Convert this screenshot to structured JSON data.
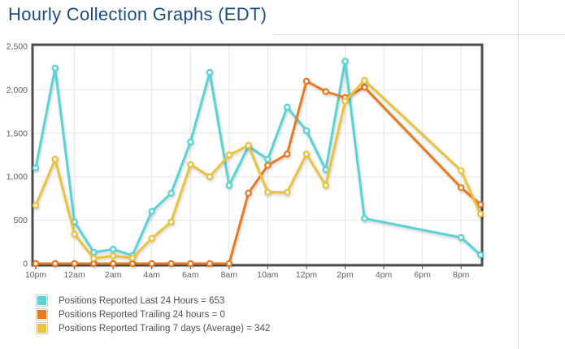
{
  "title": "Hourly Collection Graphs (EDT)",
  "colors": {
    "title": "#1b4c80",
    "axis_text": "#606060",
    "grid": "#e6e6e6",
    "plot_border": "#4c4c4c",
    "divider": "#dddddd",
    "legend_text": "#4f4f4f",
    "legend_swatch_border": "#cccccc",
    "plot_background": "#ffffff"
  },
  "chart_data": {
    "type": "line",
    "title": "Hourly Collection Graphs (EDT)",
    "xlabel": "",
    "ylabel": "",
    "grid": true,
    "legend_position": "bottom-left",
    "ylim": [
      0,
      2500
    ],
    "yticks": [
      {
        "v": 0,
        "label": "0"
      },
      {
        "v": 500,
        "label": "500"
      },
      {
        "v": 1000,
        "label": "1,000"
      },
      {
        "v": 1500,
        "label": "1,500"
      },
      {
        "v": 2000,
        "label": "2,000"
      },
      {
        "v": 2500,
        "label": "2,500"
      }
    ],
    "hours": [
      "10pm",
      "11pm",
      "12am",
      "1am",
      "2am",
      "3am",
      "4am",
      "5am",
      "6am",
      "7am",
      "8am",
      "9am",
      "10am",
      "11am",
      "12pm",
      "1pm",
      "2pm",
      "3pm",
      "4pm",
      "5pm",
      "6pm",
      "7pm",
      "8pm",
      "9pm"
    ],
    "x_tick_labels": [
      "10pm",
      "12am",
      "2am",
      "4am",
      "6am",
      "8am",
      "10am",
      "12pm",
      "2pm",
      "4pm",
      "6pm",
      "8pm"
    ],
    "series": [
      {
        "name": "Positions Reported Last 24 Hours = 653",
        "color": "#5bd3d6",
        "points": [
          [
            "10pm",
            1100
          ],
          [
            "11pm",
            2250
          ],
          [
            "12am",
            480
          ],
          [
            "1am",
            130
          ],
          [
            "2am",
            165
          ],
          [
            "3am",
            95
          ],
          [
            "4am",
            600
          ],
          [
            "5am",
            810
          ],
          [
            "6am",
            1400
          ],
          [
            "7am",
            2200
          ],
          [
            "8am",
            900
          ],
          [
            "9am",
            1350
          ],
          [
            "10am",
            1200
          ],
          [
            "11am",
            1800
          ],
          [
            "12pm",
            1530
          ],
          [
            "1pm",
            1080
          ],
          [
            "2pm",
            2330
          ],
          [
            "3pm",
            520
          ],
          [
            "8pm",
            300
          ],
          [
            "9pm",
            100
          ]
        ]
      },
      {
        "name": "Positions Reported Trailing 24 hours = 0",
        "color": "#e87a20",
        "points": [
          [
            "10pm",
            0
          ],
          [
            "11pm",
            0
          ],
          [
            "12am",
            0
          ],
          [
            "1am",
            0
          ],
          [
            "2am",
            0
          ],
          [
            "3am",
            0
          ],
          [
            "4am",
            0
          ],
          [
            "5am",
            0
          ],
          [
            "6am",
            0
          ],
          [
            "7am",
            0
          ],
          [
            "8am",
            0
          ],
          [
            "9am",
            810
          ],
          [
            "10am",
            1130
          ],
          [
            "11am",
            1260
          ],
          [
            "12pm",
            2100
          ],
          [
            "1pm",
            1980
          ],
          [
            "2pm",
            1910
          ],
          [
            "3pm",
            2030
          ],
          [
            "8pm",
            875
          ],
          [
            "9pm",
            680
          ]
        ]
      },
      {
        "name": "Positions Reported Trailing 7 days (Average) = 342",
        "color": "#eac23d",
        "points": [
          [
            "10pm",
            670
          ],
          [
            "11pm",
            1200
          ],
          [
            "12am",
            340
          ],
          [
            "1am",
            60
          ],
          [
            "2am",
            90
          ],
          [
            "3am",
            65
          ],
          [
            "4am",
            290
          ],
          [
            "5am",
            480
          ],
          [
            "6am",
            1140
          ],
          [
            "7am",
            1000
          ],
          [
            "8am",
            1250
          ],
          [
            "9am",
            1360
          ],
          [
            "10am",
            820
          ],
          [
            "11am",
            820
          ],
          [
            "12pm",
            1260
          ],
          [
            "1pm",
            900
          ],
          [
            "2pm",
            1870
          ],
          [
            "3pm",
            2110
          ],
          [
            "8pm",
            1070
          ],
          [
            "9pm",
            570
          ]
        ]
      }
    ]
  }
}
